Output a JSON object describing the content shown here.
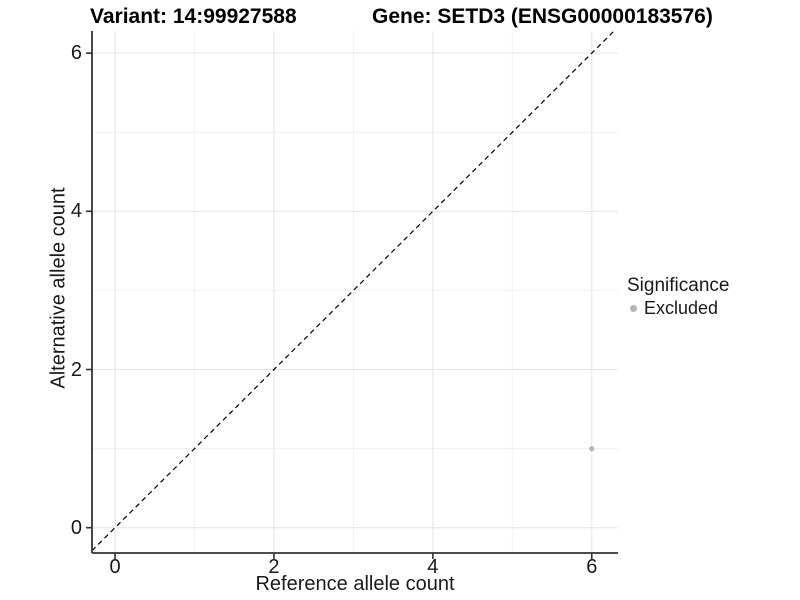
{
  "header": {
    "title_left": "Variant: 14:99927588",
    "title_right": "Gene: SETD3 (ENSG00000183576)"
  },
  "chart_data": {
    "type": "scatter",
    "title_left": "Variant: 14:99927588",
    "title_right": "Gene: SETD3 (ENSG00000183576)",
    "xlabel": "Reference allele count",
    "ylabel": "Alternative allele count",
    "xlim": [
      -0.29,
      6.33
    ],
    "ylim": [
      -0.32,
      6.28
    ],
    "x_major_ticks": [
      0,
      2,
      4,
      6
    ],
    "x_minor_gridlines": [
      1,
      3,
      5
    ],
    "y_major_ticks": [
      0,
      2,
      4,
      6
    ],
    "y_minor_gridlines": [
      1,
      3,
      5
    ],
    "grid": "major+minor on white",
    "series": [
      {
        "name": "Excluded",
        "color": "#b5b5b5",
        "marker": "circle",
        "points": [
          {
            "x": 6,
            "y": 1
          }
        ]
      }
    ],
    "reference_line": {
      "kind": "identity y=x",
      "style": "dashed",
      "color": "#000000"
    },
    "legend": {
      "title": "Significance",
      "position": "right",
      "entries": [
        {
          "label": "Excluded",
          "color": "#b5b5b5"
        }
      ]
    }
  },
  "colors": {
    "background": "#ffffff",
    "axis_line": "#333333",
    "tick_label": "#1a1a1a",
    "grid_major": "#e4e4e4",
    "grid_minor": "#f1f1f1",
    "title": "#000000"
  }
}
